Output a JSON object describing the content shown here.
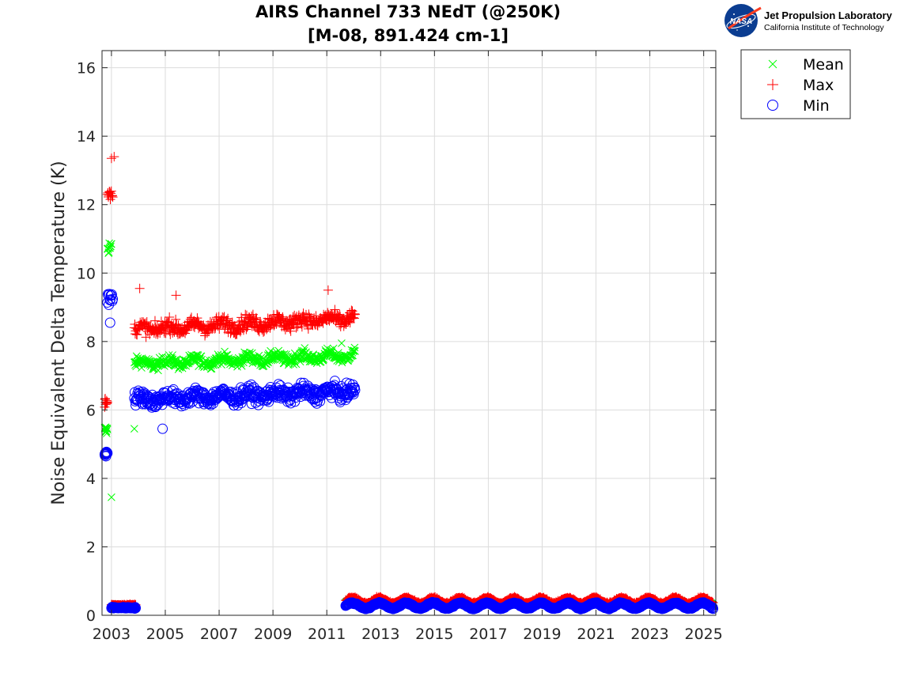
{
  "chart_data": {
    "type": "scatter",
    "title": "AIRS Channel 733 NEdT (@250K)",
    "subtitle": "[M-08, 891.424 cm-1]",
    "xlabel": "",
    "ylabel": "Noise Equivalent Delta Temperature (K)",
    "xlim": [
      2002.65,
      2025.45
    ],
    "ylim": [
      0,
      16.5
    ],
    "xticks": [
      2003,
      2005,
      2007,
      2009,
      2011,
      2013,
      2015,
      2017,
      2019,
      2021,
      2023,
      2025
    ],
    "xtick_labels": [
      "2003",
      "2005",
      "2007",
      "2009",
      "2011",
      "2013",
      "2015",
      "2017",
      "2019",
      "2021",
      "2023",
      "2025"
    ],
    "yticks": [
      0,
      2,
      4,
      6,
      8,
      10,
      12,
      14,
      16
    ],
    "ytick_labels": [
      "0",
      "2",
      "4",
      "6",
      "8",
      "10",
      "12",
      "14",
      "16"
    ],
    "grid": true,
    "legend_position": "outside-top-right",
    "series": [
      {
        "name": "Mean",
        "marker": "x",
        "color": "#00ff00",
        "segments": [
          {
            "x_start": 2002.75,
            "x_end": 2002.85,
            "level": 5.4,
            "noise": 0.15
          },
          {
            "x_start": 2002.85,
            "x_end": 2003.0,
            "level": 10.75,
            "noise": 0.2
          },
          {
            "x_start": 2003.85,
            "x_end": 2012.05,
            "level": 7.35,
            "slope_per_year": 0.03,
            "noise": 0.15
          },
          {
            "x_start": 2011.7,
            "x_end": 2025.35,
            "level": 0.38,
            "noise": 0.02
          }
        ],
        "points": [
          {
            "x": 2003.0,
            "y": 3.45
          },
          {
            "x": 2003.85,
            "y": 5.45
          },
          {
            "x": 2011.55,
            "y": 7.95
          }
        ]
      },
      {
        "name": "Max",
        "marker": "+",
        "color": "#ff0000",
        "segments": [
          {
            "x_start": 2002.75,
            "x_end": 2002.85,
            "level": 6.2,
            "noise": 0.15
          },
          {
            "x_start": 2002.85,
            "x_end": 2003.05,
            "level": 12.3,
            "noise": 0.25
          },
          {
            "x_start": 2003.0,
            "x_end": 2003.9,
            "level": 0.3,
            "noise": 0.02
          },
          {
            "x_start": 2003.85,
            "x_end": 2012.05,
            "level": 8.35,
            "slope_per_year": 0.04,
            "noise": 0.2
          },
          {
            "x_start": 2011.7,
            "x_end": 2025.35,
            "level": 0.43,
            "noise": 0.03
          }
        ],
        "points": [
          {
            "x": 2003.0,
            "y": 13.35
          },
          {
            "x": 2003.1,
            "y": 13.4
          },
          {
            "x": 2004.05,
            "y": 9.55
          },
          {
            "x": 2005.4,
            "y": 9.35
          },
          {
            "x": 2011.05,
            "y": 9.5
          }
        ]
      },
      {
        "name": "Min",
        "marker": "o",
        "color": "#0000ff",
        "segments": [
          {
            "x_start": 2002.75,
            "x_end": 2002.85,
            "level": 4.7,
            "noise": 0.15
          },
          {
            "x_start": 2002.85,
            "x_end": 2003.05,
            "level": 9.3,
            "noise": 0.25
          },
          {
            "x_start": 2003.0,
            "x_end": 2003.9,
            "level": 0.22,
            "noise": 0.02
          },
          {
            "x_start": 2003.85,
            "x_end": 2012.05,
            "level": 6.3,
            "slope_per_year": 0.03,
            "noise": 0.2
          },
          {
            "x_start": 2011.7,
            "x_end": 2025.35,
            "level": 0.28,
            "noise": 0.02
          }
        ],
        "points": [
          {
            "x": 2004.9,
            "y": 5.45
          },
          {
            "x": 2002.95,
            "y": 8.55
          },
          {
            "x": 2011.8,
            "y": 0.33
          }
        ]
      }
    ]
  },
  "legend": {
    "items": [
      {
        "label": "Mean",
        "marker": "x",
        "color": "#00ff00"
      },
      {
        "label": "Max",
        "marker": "+",
        "color": "#ff0000"
      },
      {
        "label": "Min",
        "marker": "o",
        "color": "#0000ff"
      }
    ]
  },
  "logo": {
    "agency": "NASA",
    "org_name": "Jet Propulsion Laboratory",
    "org_sub": "California Institute of Technology"
  }
}
